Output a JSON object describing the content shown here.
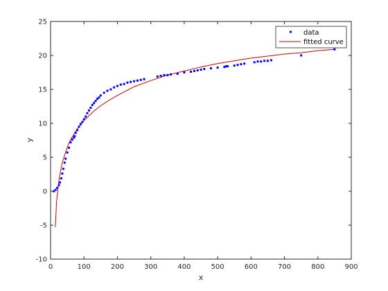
{
  "chart_data": {
    "type": "scatter",
    "title": "",
    "xlabel": "x",
    "ylabel": "y",
    "xlim": [
      0,
      900
    ],
    "ylim": [
      -10,
      25
    ],
    "xticks": [
      0,
      100,
      200,
      300,
      400,
      500,
      600,
      700,
      800,
      900
    ],
    "yticks": [
      -10,
      -5,
      0,
      5,
      10,
      15,
      20,
      25
    ],
    "xtick_labels": [
      "0",
      "100",
      "200",
      "300",
      "400",
      "500",
      "600",
      "700",
      "800",
      "900"
    ],
    "ytick_labels": [
      "-10",
      "-5",
      "0",
      "5",
      "10",
      "15",
      "20",
      "25"
    ],
    "grid": false,
    "legend_position": "top-right",
    "series": [
      {
        "name": "data",
        "kind": "scatter",
        "color": "#0000ff",
        "x": [
          10,
          15,
          20,
          25,
          28,
          32,
          35,
          38,
          42,
          45,
          50,
          55,
          60,
          65,
          70,
          72,
          75,
          80,
          85,
          90,
          95,
          100,
          105,
          110,
          115,
          120,
          125,
          130,
          135,
          140,
          145,
          150,
          160,
          170,
          180,
          190,
          200,
          210,
          220,
          230,
          240,
          250,
          260,
          270,
          280,
          320,
          330,
          340,
          350,
          360,
          380,
          400,
          420,
          430,
          440,
          450,
          460,
          480,
          500,
          520,
          525,
          530,
          550,
          560,
          570,
          580,
          610,
          620,
          630,
          640,
          650,
          660,
          750,
          850
        ],
        "y": [
          0,
          0.2,
          0.5,
          0.9,
          1.3,
          1.9,
          2.6,
          3.3,
          4.2,
          4.8,
          5.7,
          6.4,
          7.2,
          7.6,
          7.9,
          8.1,
          8.6,
          9.0,
          9.5,
          9.9,
          10.2,
          10.6,
          11.0,
          11.5,
          11.9,
          12.3,
          12.7,
          13.0,
          13.3,
          13.6,
          13.8,
          14.1,
          14.5,
          14.8,
          15.0,
          15.3,
          15.5,
          15.7,
          15.8,
          16.0,
          16.1,
          16.2,
          16.3,
          16.4,
          16.5,
          16.9,
          17.0,
          17.1,
          17.1,
          17.2,
          17.3,
          17.5,
          17.6,
          17.7,
          17.8,
          17.9,
          18.0,
          18.1,
          18.2,
          18.3,
          18.4,
          18.4,
          18.5,
          18.6,
          18.7,
          18.8,
          19.0,
          19.1,
          19.1,
          19.2,
          19.2,
          19.3,
          20.0,
          20.9
        ]
      },
      {
        "name": "fitted curve",
        "kind": "line",
        "color": "#cc0000",
        "x": [
          14,
          18,
          22,
          26,
          30,
          35,
          40,
          50,
          60,
          70,
          80,
          90,
          100,
          125,
          150,
          175,
          200,
          250,
          300,
          350,
          400,
          450,
          500,
          550,
          600,
          650,
          700,
          750,
          800,
          850
        ],
        "y": [
          -5.3,
          -1.5,
          0.3,
          1.9,
          3.0,
          4.2,
          5.0,
          6.5,
          7.6,
          8.4,
          9.2,
          9.8,
          10.4,
          11.6,
          12.6,
          13.4,
          14.1,
          15.4,
          16.3,
          17.1,
          17.7,
          18.3,
          18.8,
          19.2,
          19.6,
          19.9,
          20.2,
          20.4,
          20.7,
          20.9
        ]
      }
    ]
  }
}
